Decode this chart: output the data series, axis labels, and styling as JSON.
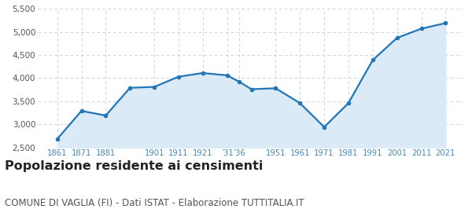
{
  "x_positions": [
    1861,
    1871,
    1881,
    1891,
    1901,
    1911,
    1921,
    1931,
    1936,
    1941,
    1951,
    1961,
    1971,
    1981,
    1991,
    2001,
    2011,
    2021
  ],
  "y_values": [
    2680,
    3290,
    3190,
    3790,
    3810,
    4030,
    4110,
    4060,
    3920,
    3760,
    3780,
    3460,
    2940,
    3460,
    4390,
    4870,
    5070,
    5190
  ],
  "tick_positions": [
    1861,
    1871,
    1881,
    1901,
    1911,
    1921,
    1931,
    1936,
    1951,
    1961,
    1971,
    1981,
    1991,
    2001,
    2011,
    2021
  ],
  "tick_labels": [
    "1861",
    "1871",
    "1881",
    "1901",
    "1911",
    "1921",
    "’31",
    "’36",
    "1951",
    "1961",
    "1971",
    "1981",
    "1991",
    "2001",
    "2011",
    "2021"
  ],
  "line_color": "#2176b8",
  "fill_color": "#daeaf7",
  "marker_color": "#2176b8",
  "background_color": "#ffffff",
  "grid_color": "#c8d8e8",
  "ylim": [
    2500,
    5500
  ],
  "yticks": [
    2500,
    3000,
    3500,
    4000,
    4500,
    5000,
    5500
  ],
  "xlim": [
    1853,
    2028
  ],
  "title": "Popolazione residente ai censimenti",
  "subtitle": "COMUNE DI VAGLIA (FI) - Dati ISTAT - Elaborazione TUTTITALIA.IT",
  "title_fontsize": 11.5,
  "subtitle_fontsize": 8.5,
  "tick_label_color": "#4488bb",
  "ytick_label_color": "#555555"
}
